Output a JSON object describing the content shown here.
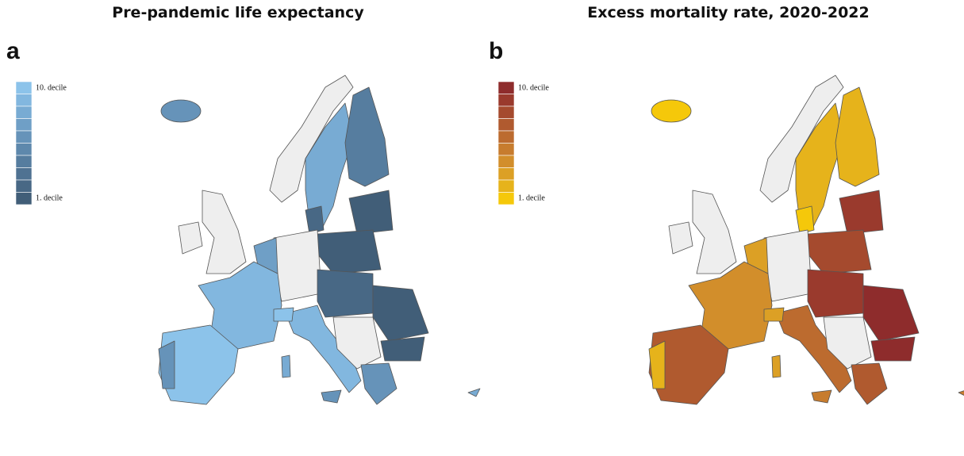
{
  "panels": [
    {
      "letter": "a",
      "title": "Pre-pandemic life expectancy",
      "legend": {
        "top_label": "10. decile",
        "bottom_label": "1. decile",
        "colors": [
          "#8cc3ea",
          "#82b7df",
          "#78abd3",
          "#6f9fc6",
          "#6693b9",
          "#5e88ac",
          "#567d9f",
          "#4f7292",
          "#486885",
          "#415e78"
        ]
      }
    },
    {
      "letter": "b",
      "title": "Excess mortality rate, 2020-2022",
      "legend": {
        "top_label": "10. decile",
        "bottom_label": "1. decile",
        "colors": [
          "#8e2c2c",
          "#9a3a2d",
          "#a54a2e",
          "#b05a2f",
          "#bc6b2f",
          "#c77c2e",
          "#d28e2b",
          "#dca025",
          "#e6b31b",
          "#f5c80a"
        ]
      }
    }
  ]
}
